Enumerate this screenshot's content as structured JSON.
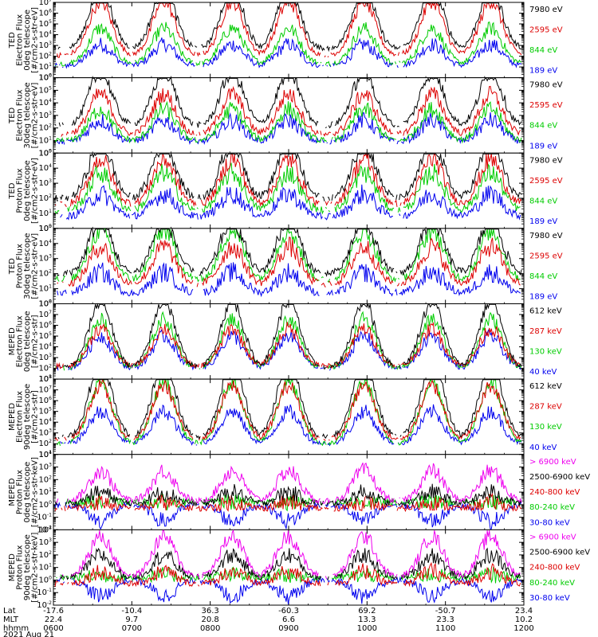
{
  "figure": {
    "date_label": "2021 Aug 21",
    "x_row_labels": [
      "Lat",
      "MLT",
      "hhmm"
    ]
  },
  "chart_data": {
    "type": "line",
    "x_ticks": [
      {
        "lat": "-17.6",
        "mlt": "22.4",
        "hhmm": "0600"
      },
      {
        "lat": "-10.4",
        "mlt": "9.7",
        "hhmm": "0700"
      },
      {
        "lat": "36.3",
        "mlt": "20.8",
        "hhmm": "0800"
      },
      {
        "lat": "-60.3",
        "mlt": "6.6",
        "hhmm": "0900"
      },
      {
        "lat": "69.2",
        "mlt": "13.3",
        "hhmm": "1000"
      },
      {
        "lat": "-50.7",
        "mlt": "23.3",
        "hhmm": "1100"
      },
      {
        "lat": "23.4",
        "mlt": "10.2",
        "hhmm": "1200"
      }
    ],
    "panels": [
      {
        "ylabel": [
          "TED",
          "Electron Flux",
          "0deg telescope",
          "[#/cm2-s-str-eV]"
        ],
        "ymin_exp": 0,
        "ymax_exp": 7,
        "channels": [
          {
            "label": "7980 eV",
            "color": "#000000"
          },
          {
            "label": "2595 eV",
            "color": "#dd0000"
          },
          {
            "label": "844 eV",
            "color": "#00cc00"
          },
          {
            "label": "189 eV",
            "color": "#0000ee"
          }
        ],
        "levels": [
          2.7,
          2.1,
          1.3,
          1.1
        ],
        "peaks": [
          5.6,
          5.0,
          3.3,
          2.0
        ]
      },
      {
        "ylabel": [
          "TED",
          "Electron Flux",
          "30deg telescope",
          "[#/cm2-s-str-eV]"
        ],
        "ymin_exp": 0,
        "ymax_exp": 6,
        "channels": [
          {
            "label": "7980 eV",
            "color": "#000000"
          },
          {
            "label": "2595 eV",
            "color": "#dd0000"
          },
          {
            "label": "844 eV",
            "color": "#00cc00"
          },
          {
            "label": "189 eV",
            "color": "#0000ee"
          }
        ],
        "levels": [
          2.2,
          1.5,
          1.0,
          0.9
        ],
        "peaks": [
          4.3,
          3.2,
          2.5,
          1.7
        ]
      },
      {
        "ylabel": [
          "TED",
          "Proton Flux",
          "0deg telescope",
          "[#/cm2-s-str-eV]"
        ],
        "ymin_exp": 0,
        "ymax_exp": 5,
        "channels": [
          {
            "label": "7980 eV",
            "color": "#000000"
          },
          {
            "label": "2595 eV",
            "color": "#dd0000"
          },
          {
            "label": "844 eV",
            "color": "#00cc00"
          },
          {
            "label": "189 eV",
            "color": "#0000ee"
          }
        ],
        "levels": [
          2.0,
          1.6,
          1.2,
          0.8
        ],
        "peaks": [
          3.7,
          3.0,
          2.5,
          1.5
        ]
      },
      {
        "ylabel": [
          "TED",
          "Proton Flux",
          "30deg telescope",
          "[#/cm2-s-str-eV]"
        ],
        "ymin_exp": 0,
        "ymax_exp": 5,
        "channels": [
          {
            "label": "7980 eV",
            "color": "#000000"
          },
          {
            "label": "2595 eV",
            "color": "#dd0000"
          },
          {
            "label": "844 eV",
            "color": "#00cc00"
          },
          {
            "label": "189 eV",
            "color": "#0000ee"
          }
        ],
        "levels": [
          2.0,
          1.3,
          1.6,
          0.7
        ],
        "peaks": [
          3.6,
          2.5,
          3.3,
          1.4
        ]
      },
      {
        "ylabel": [
          "MEPED",
          "Electron Flux",
          "0deg telescope",
          "[#/cm2-s-str]"
        ],
        "ymin_exp": 1,
        "ymax_exp": 8,
        "channels": [
          {
            "label": "612 keV",
            "color": "#000000"
          },
          {
            "label": "287 keV",
            "color": "#dd0000"
          },
          {
            "label": "130 keV",
            "color": "#00cc00"
          },
          {
            "label": "40 keV",
            "color": "#0000ee"
          }
        ],
        "levels": [
          2.1,
          2.2,
          2.0,
          2.0
        ],
        "peaks": [
          6.2,
          3.5,
          4.6,
          3.0
        ]
      },
      {
        "ylabel": [
          "MEPED",
          "Electron Flux",
          "90deg telescope",
          "[#/cm2-s-str]"
        ],
        "ymin_exp": 1,
        "ymax_exp": 8,
        "channels": [
          {
            "label": "612 keV",
            "color": "#000000"
          },
          {
            "label": "287 keV",
            "color": "#dd0000"
          },
          {
            "label": "130 keV",
            "color": "#00cc00"
          },
          {
            "label": "40 keV",
            "color": "#0000ee"
          }
        ],
        "levels": [
          2.6,
          2.4,
          2.0,
          2.0
        ],
        "peaks": [
          7.0,
          5.0,
          5.8,
          3.0
        ]
      },
      {
        "ylabel": [
          "MEPED",
          "Proton Flux",
          "0deg telescope",
          "[#/cm2-s-str-keV]"
        ],
        "ymin_exp": -2,
        "ymax_exp": 4,
        "channels": [
          {
            "label": "> 6900 keV",
            "color": "#ee00ee"
          },
          {
            "label": "2500-6900 keV",
            "color": "#000000"
          },
          {
            "label": "240-800 keV",
            "color": "#dd0000"
          },
          {
            "label": "80-240 keV",
            "color": "#00cc00"
          },
          {
            "label": "30-80 keV",
            "color": "#0000ee"
          }
        ],
        "levels": [
          0.3,
          0.1,
          -0.3,
          0.2,
          0.0
        ],
        "peaks": [
          2.4,
          0.9,
          0.5,
          0.0,
          -1.3
        ]
      },
      {
        "ylabel": [
          "MEPED",
          "Proton Flux",
          "90deg telescope",
          "[#/cm2-s-str-keV]"
        ],
        "ymin_exp": -2,
        "ymax_exp": 4,
        "channels": [
          {
            "label": "> 6900 keV",
            "color": "#ee00ee"
          },
          {
            "label": "2500-6900 keV",
            "color": "#000000"
          },
          {
            "label": "240-800 keV",
            "color": "#dd0000"
          },
          {
            "label": "80-240 keV",
            "color": "#00cc00"
          },
          {
            "label": "30-80 keV",
            "color": "#0000ee"
          }
        ],
        "levels": [
          0.3,
          0.2,
          -0.3,
          0.2,
          0.0
        ],
        "peaks": [
          3.2,
          1.8,
          1.0,
          0.2,
          -1.3
        ]
      }
    ]
  }
}
